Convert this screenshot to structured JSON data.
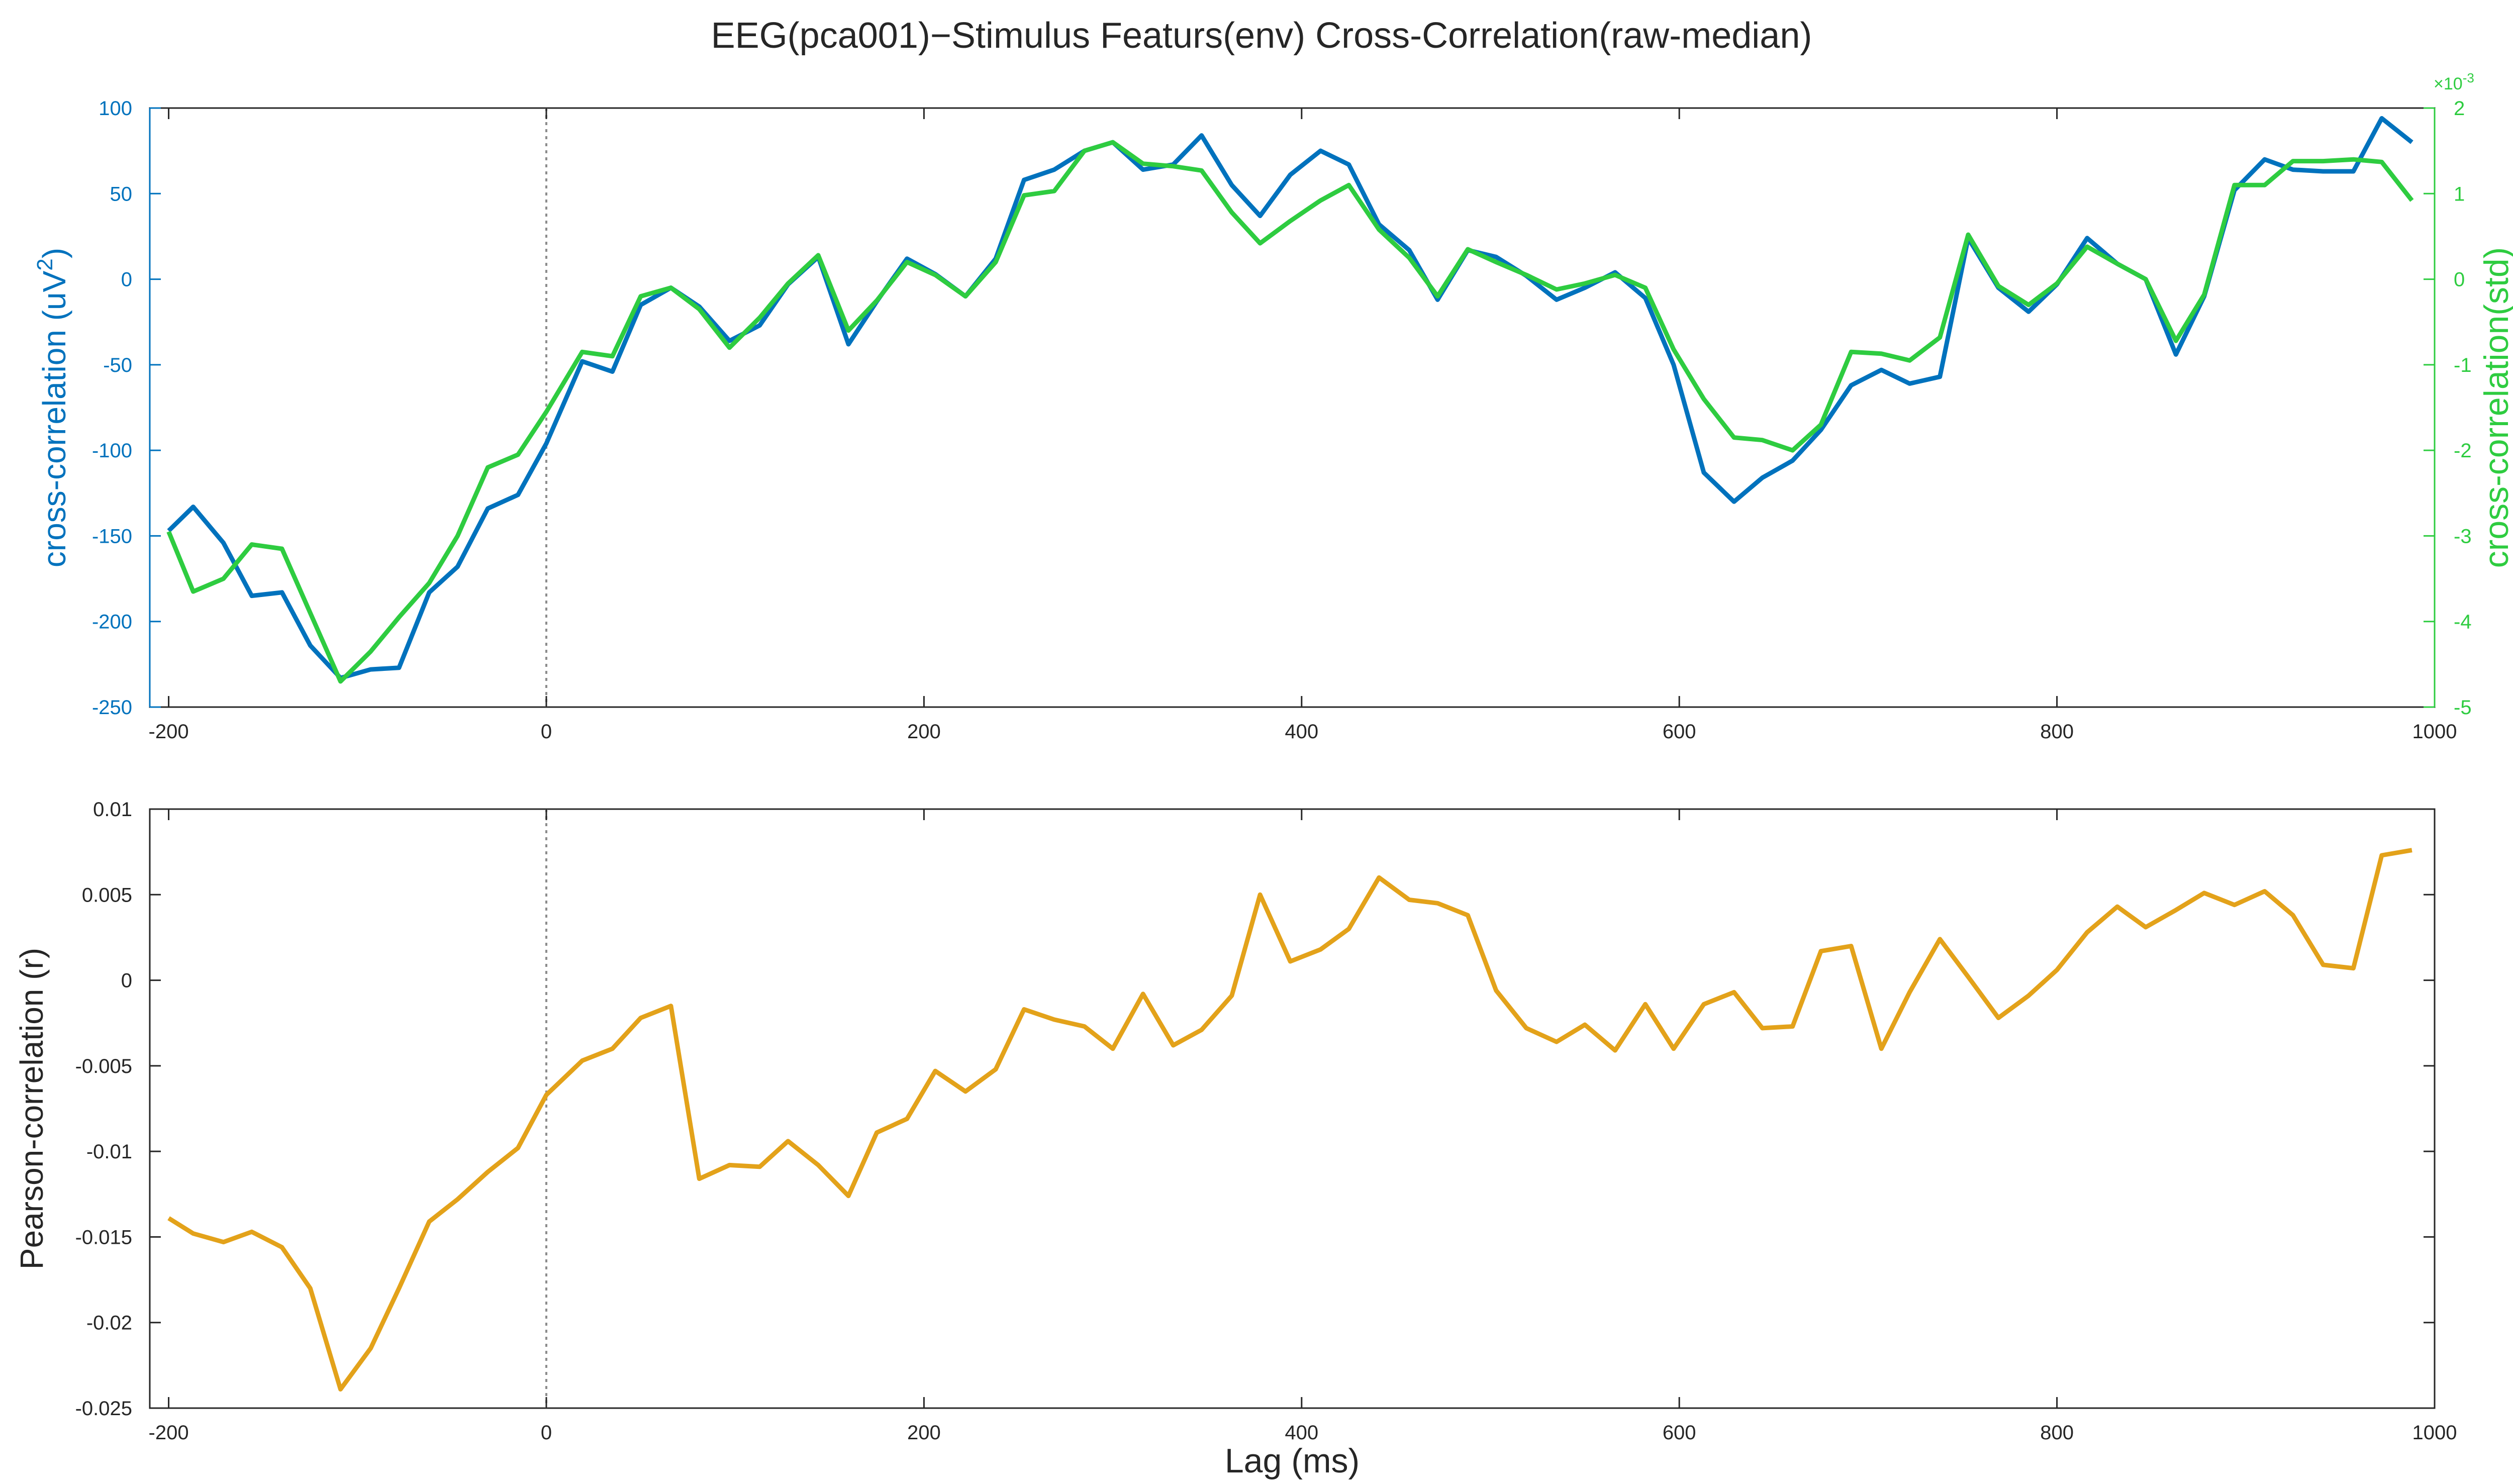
{
  "figure": {
    "title": "EEG(pca001)−Stimulus Featurs(env) Cross-Correlation(raw-median)"
  },
  "chart_data": [
    {
      "type": "line",
      "title": "",
      "xlabel": "",
      "ylabel_left": "cross-correlation (uV",
      "ylabel_left_sup": "2",
      "ylabel_left_suffix": ")",
      "ylabel_right": "cross-correlation(std)",
      "right_exponent_label": "×10",
      "right_exponent_sup": "-3",
      "xlim": [
        -210,
        1000
      ],
      "ylim_left": [
        -250,
        100
      ],
      "ylim_right": [
        -5,
        2
      ],
      "xticks": [
        -200,
        0,
        200,
        400,
        600,
        800,
        1000
      ],
      "xtick_labels": [
        "-200",
        "0",
        "200",
        "400",
        "600",
        "800",
        "1000"
      ],
      "yticks_left": [
        -250,
        -200,
        -150,
        -100,
        -50,
        0,
        50,
        100
      ],
      "ytick_labels_left": [
        "-250",
        "-200",
        "-150",
        "-100",
        "-50",
        "0",
        "50",
        "100"
      ],
      "yticks_right": [
        -5,
        -4,
        -3,
        -2,
        -1,
        0,
        1,
        2
      ],
      "ytick_labels_right": [
        "-5",
        "-4",
        "-3",
        "-2",
        "-1",
        "0",
        "1",
        "2"
      ],
      "zero_line_x": 0,
      "colors": {
        "left": "#0072BD",
        "right": "#2ECC40"
      },
      "x": [
        -200,
        -187,
        -171,
        -156,
        -140,
        -125,
        -109,
        -93,
        -78,
        -62,
        -47,
        -31,
        -15,
        0,
        19,
        35,
        50,
        66,
        81,
        97,
        113,
        128,
        144,
        160,
        175,
        191,
        206,
        222,
        238,
        253,
        269,
        285,
        300,
        316,
        332,
        347,
        363,
        378,
        394,
        410,
        425,
        441,
        457,
        472,
        488,
        503,
        519,
        535,
        550,
        566,
        582,
        597,
        613,
        629,
        644,
        660,
        675,
        691,
        707,
        722,
        738,
        753,
        769,
        785,
        800,
        816,
        832,
        847,
        863,
        878,
        894,
        910,
        925,
        941,
        957,
        972,
        988
      ],
      "series": [
        {
          "axis": "left",
          "values": [
            -147,
            -133,
            -154,
            -185,
            -183,
            -214,
            -233,
            -228,
            -227,
            -183,
            -168,
            -134,
            -126,
            -96,
            -48,
            -54,
            -15,
            -5,
            -16,
            -36,
            -27,
            -3,
            13,
            -38,
            -13,
            12,
            3,
            -10,
            12,
            58,
            64,
            75,
            80,
            64,
            67,
            84,
            55,
            37,
            61,
            75,
            67,
            32,
            17,
            -12,
            17,
            13,
            2,
            -12,
            -5,
            4,
            -11,
            -50,
            -113,
            -130,
            -116,
            -106,
            -88,
            -62,
            -53,
            -61,
            -57,
            24,
            -5,
            -19,
            -3,
            24,
            9,
            0,
            -44,
            -10,
            52,
            70,
            64,
            63,
            63,
            94,
            80
          ]
        },
        {
          "axis": "right",
          "values": [
            -2.95,
            -3.65,
            -3.5,
            -3.1,
            -3.15,
            -3.9,
            -4.7,
            -4.35,
            -3.95,
            -3.55,
            -3.0,
            -2.2,
            -2.05,
            -1.55,
            -0.85,
            -0.9,
            -0.2,
            -0.1,
            -0.35,
            -0.8,
            -0.45,
            -0.05,
            0.28,
            -0.6,
            -0.25,
            0.2,
            0.05,
            -0.2,
            0.2,
            0.98,
            1.03,
            1.5,
            1.6,
            1.35,
            1.32,
            1.27,
            0.78,
            0.42,
            0.68,
            0.92,
            1.1,
            0.58,
            0.25,
            -0.2,
            0.35,
            0.2,
            0.05,
            -0.12,
            -0.05,
            0.05,
            -0.1,
            -0.82,
            -1.4,
            -1.85,
            -1.88,
            -2.0,
            -1.7,
            -0.85,
            -0.87,
            -0.95,
            -0.68,
            0.52,
            -0.08,
            -0.3,
            -0.05,
            0.38,
            0.18,
            0.0,
            -0.72,
            -0.18,
            1.1,
            1.1,
            1.38,
            1.38,
            1.4,
            1.37,
            0.92
          ]
        }
      ]
    },
    {
      "type": "line",
      "title": "",
      "xlabel": "Lag (ms)",
      "ylabel": "Pearson-correlation (r)",
      "xlim": [
        -210,
        1000
      ],
      "ylim": [
        -0.025,
        0.01
      ],
      "xticks": [
        -200,
        0,
        200,
        400,
        600,
        800,
        1000
      ],
      "xtick_labels": [
        "-200",
        "0",
        "200",
        "400",
        "600",
        "800",
        "1000"
      ],
      "yticks": [
        -0.025,
        -0.02,
        -0.015,
        -0.01,
        -0.005,
        0,
        0.005,
        0.01
      ],
      "ytick_labels": [
        "-0.025",
        "-0.02",
        "-0.015",
        "-0.01",
        "-0.005",
        "0",
        "0.005",
        "0.01"
      ],
      "zero_line_x": 0,
      "colors": {
        "line": "#E3A21A"
      },
      "x": [
        -200,
        -187,
        -171,
        -156,
        -140,
        -125,
        -109,
        -93,
        -78,
        -62,
        -47,
        -31,
        -15,
        0,
        19,
        35,
        50,
        66,
        81,
        97,
        113,
        128,
        144,
        160,
        175,
        191,
        206,
        222,
        238,
        253,
        269,
        285,
        300,
        316,
        332,
        347,
        363,
        378,
        394,
        410,
        425,
        441,
        457,
        472,
        488,
        503,
        519,
        535,
        550,
        566,
        582,
        597,
        613,
        629,
        644,
        660,
        675,
        691,
        707,
        722,
        738,
        753,
        769,
        785,
        800,
        816,
        832,
        847,
        863,
        878,
        894,
        910,
        925,
        941,
        957,
        972,
        988
      ],
      "series": [
        {
          "values": [
            -0.0139,
            -0.0148,
            -0.0153,
            -0.0147,
            -0.0156,
            -0.018,
            -0.0239,
            -0.0215,
            -0.018,
            -0.0141,
            -0.0128,
            -0.0112,
            -0.0098,
            -0.0067,
            -0.0047,
            -0.004,
            -0.0022,
            -0.0015,
            -0.0116,
            -0.0108,
            -0.0109,
            -0.0094,
            -0.0108,
            -0.0126,
            -0.0089,
            -0.0081,
            -0.0053,
            -0.0065,
            -0.0052,
            -0.0017,
            -0.0023,
            -0.0027,
            -0.004,
            -0.0008,
            -0.0038,
            -0.0029,
            -0.0009,
            0.005,
            0.0011,
            0.0018,
            0.003,
            0.006,
            0.0047,
            0.0045,
            0.0038,
            -0.0006,
            -0.0028,
            -0.0036,
            -0.0026,
            -0.0041,
            -0.0014,
            -0.004,
            -0.0014,
            -0.0007,
            -0.0028,
            -0.0027,
            0.0017,
            0.002,
            -0.004,
            -0.0007,
            0.0024,
            0.0002,
            -0.0022,
            -0.0009,
            0.0006,
            0.0028,
            0.0043,
            0.0031,
            0.0041,
            0.0051,
            0.0044,
            0.0052,
            0.0038,
            0.0009,
            0.0007,
            0.0073,
            0.0076
          ]
        }
      ]
    }
  ]
}
